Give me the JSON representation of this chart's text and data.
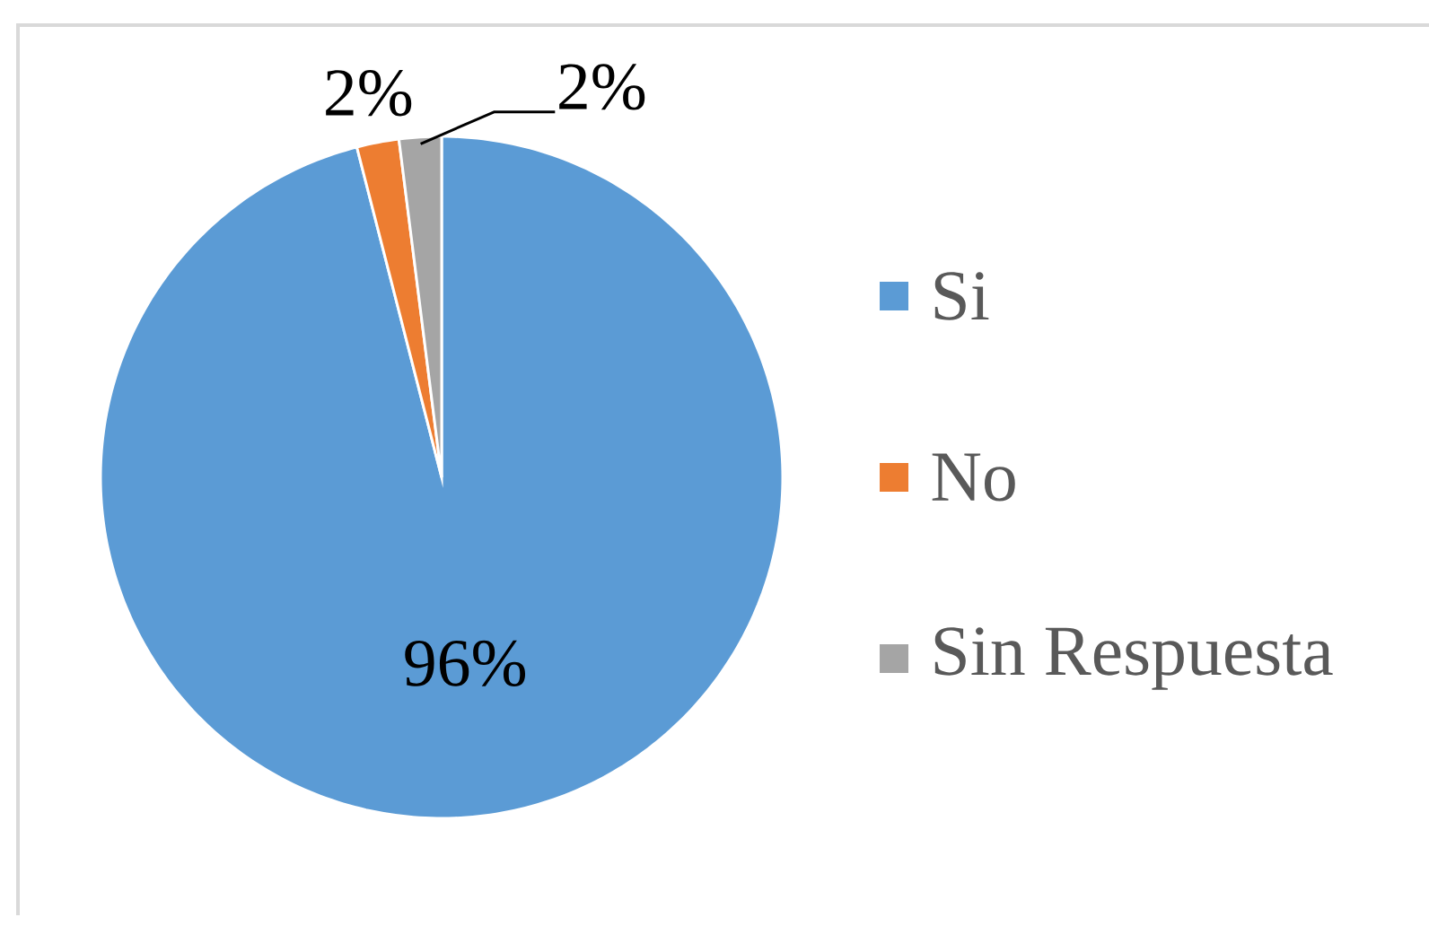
{
  "chart_data": {
    "type": "pie",
    "categories": [
      "Si",
      "No",
      "Sin Respuesta"
    ],
    "values": [
      96,
      2,
      2
    ],
    "colors": [
      "#5b9bd5",
      "#ed7d31",
      "#a5a5a5"
    ],
    "value_labels": [
      "96%",
      "2%",
      "2%"
    ],
    "legend": "right"
  }
}
